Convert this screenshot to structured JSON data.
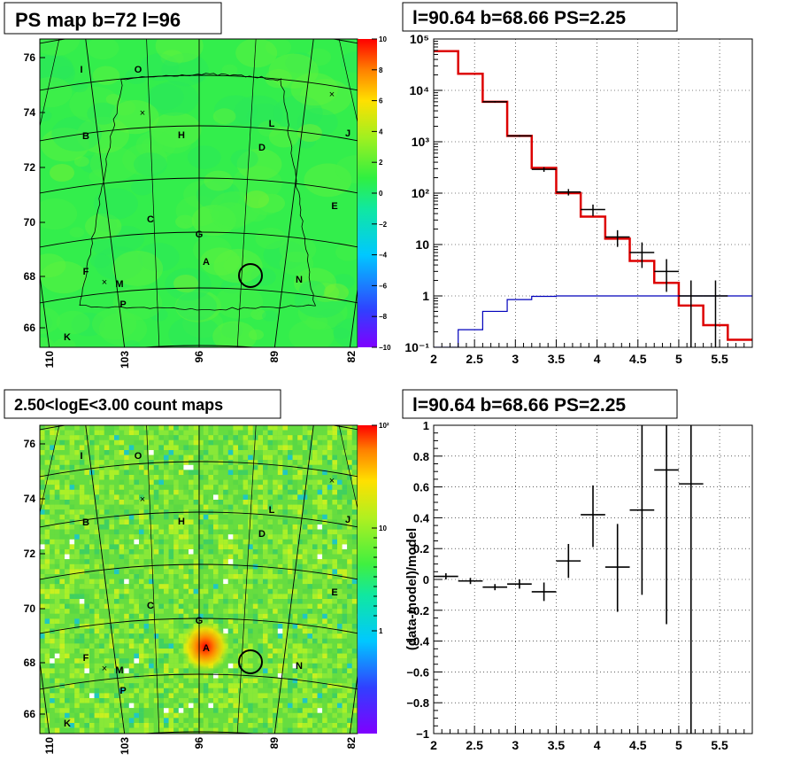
{
  "panels": {
    "ps_map": {
      "title": "PS map b=72 l=96",
      "y_ticks": [
        "76",
        "74",
        "72",
        "70",
        "68",
        "66"
      ],
      "x_ticks": [
        "110",
        "103",
        "96",
        "89",
        "82"
      ],
      "colorbar_ticks": [
        "10",
        "8",
        "6",
        "4",
        "2",
        "0",
        "−2",
        "−4",
        "−6",
        "−8",
        "−10"
      ],
      "colors": {
        "background": "#33ee4c",
        "circle": "#000000"
      }
    },
    "count_map": {
      "title": "2.50<logE<3.00 count maps",
      "y_ticks": [
        "76",
        "74",
        "72",
        "70",
        "68",
        "66"
      ],
      "x_ticks": [
        "110",
        "103",
        "96",
        "89",
        "82"
      ],
      "colorbar_ticks": [
        "10²",
        "10",
        "1"
      ]
    },
    "map_labels": [
      "I",
      "O",
      "B",
      "H",
      "L",
      "D",
      "J",
      "C",
      "G",
      "E",
      "A",
      "F",
      "M",
      "P",
      "N",
      "K"
    ]
  },
  "chart_data": [
    {
      "type": "line",
      "title": "l=90.64 b=68.66 PS=2.25",
      "xlabel": "",
      "ylabel": "",
      "xlim": [
        2.0,
        5.9
      ],
      "ylim": [
        0.1,
        100000
      ],
      "y_scale": "log",
      "grid": true,
      "x_ticks": [
        "2",
        "2.5",
        "3",
        "3.5",
        "4",
        "4.5",
        "5",
        "5.5"
      ],
      "y_ticks": [
        "10⁻¹",
        "1",
        "10",
        "10²",
        "10³",
        "10⁴",
        "10⁵"
      ],
      "series": [
        {
          "role": "model-total",
          "color": "#dd0000",
          "bin_edges": [
            2.0,
            2.3,
            2.6,
            2.9,
            3.2,
            3.5,
            3.8,
            4.1,
            4.4,
            4.7,
            5.0,
            5.3,
            5.6,
            5.9
          ],
          "values": [
            58000,
            21000,
            6000,
            1300,
            310,
            100,
            35,
            13,
            4.8,
            1.8,
            0.65,
            0.27,
            0.14
          ]
        },
        {
          "role": "point-source",
          "color": "#0000bb",
          "bin_edges": [
            2.0,
            2.3,
            2.6,
            2.9,
            3.2,
            3.5,
            3.8,
            4.1,
            4.4,
            4.7,
            5.0,
            5.3,
            5.6,
            5.9
          ],
          "values": [
            0.1,
            0.22,
            0.5,
            0.85,
            0.98,
            1.0,
            1.0,
            1.0,
            1.0,
            1.0,
            1.0,
            1.0,
            1.0
          ]
        },
        {
          "role": "data",
          "color": "#000000",
          "x": [
            2.75,
            3.05,
            3.35,
            3.65,
            3.95,
            4.25,
            4.55,
            4.85,
            5.15,
            5.45
          ],
          "xerr": 0.15,
          "y": [
            6000,
            1300,
            290,
            105,
            48,
            14,
            7,
            3,
            1,
            1
          ],
          "y_low": [
            5800,
            1250,
            260,
            90,
            36,
            9,
            3.5,
            1.2,
            0.1,
            0.1
          ],
          "y_high": [
            6200,
            1350,
            320,
            120,
            60,
            19,
            11,
            5.2,
            2.0,
            2.0
          ]
        }
      ]
    },
    {
      "type": "scatter",
      "title": "l=90.64 b=68.66 PS=2.25",
      "xlabel": "",
      "ylabel": "(data-model)/model",
      "xlim": [
        2.0,
        5.9
      ],
      "ylim": [
        -1,
        1
      ],
      "grid": true,
      "x_ticks": [
        "2",
        "2.5",
        "3",
        "3.5",
        "4",
        "4.5",
        "5",
        "5.5"
      ],
      "y_ticks": [
        "−1",
        "−0.8",
        "−0.6",
        "−0.4",
        "−0.2",
        "0",
        "0.2",
        "0.4",
        "0.6",
        "0.8",
        "1"
      ],
      "series": [
        {
          "role": "residual",
          "color": "#000000",
          "x": [
            2.15,
            2.45,
            2.75,
            3.05,
            3.35,
            3.65,
            3.95,
            4.25,
            4.55,
            4.85,
            5.15
          ],
          "xerr": 0.15,
          "y": [
            0.02,
            -0.01,
            -0.05,
            -0.03,
            -0.08,
            0.12,
            0.42,
            0.08,
            0.45,
            0.71,
            0.62
          ],
          "y_low": [
            0.0,
            -0.03,
            -0.07,
            -0.06,
            -0.14,
            0.01,
            0.21,
            -0.21,
            -0.1,
            -0.29,
            -1.0
          ],
          "y_high": [
            0.04,
            0.01,
            -0.03,
            0.0,
            -0.02,
            0.23,
            0.61,
            0.36,
            1.0,
            1.0,
            1.0
          ]
        }
      ]
    }
  ]
}
